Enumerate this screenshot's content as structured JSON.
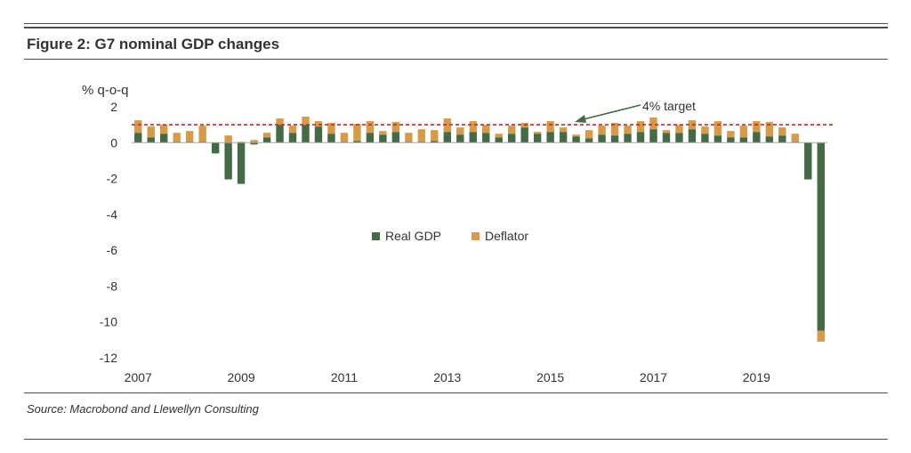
{
  "figure": {
    "title": "Figure 2: G7 nominal GDP changes",
    "source": "Source: Macrobond and Llewellyn Consulting"
  },
  "chart_data": {
    "type": "bar",
    "stacked": true,
    "ylabel": "% q-o-q",
    "ylim": [
      -12,
      2
    ],
    "yticks": [
      2,
      0,
      -2,
      -4,
      -6,
      -8,
      -10,
      -12
    ],
    "xticks": [
      "2007",
      "2009",
      "2011",
      "2013",
      "2015",
      "2017",
      "2019"
    ],
    "x_start_year": 2007,
    "quarters_per_year": 4,
    "legend": {
      "placement": "center"
    },
    "reference_line": {
      "value": 1.0,
      "label": "4% target",
      "color": "#b5302f",
      "style": "dashed"
    },
    "series": [
      {
        "name": "Real GDP",
        "color": "#436b45",
        "values": [
          0.55,
          0.3,
          0.5,
          0.05,
          0.05,
          0.05,
          -0.6,
          -2.05,
          -2.3,
          -0.1,
          0.3,
          1.0,
          0.55,
          1.0,
          0.9,
          0.5,
          0.05,
          0.1,
          0.55,
          0.45,
          0.6,
          0.05,
          0.05,
          0.1,
          0.6,
          0.45,
          0.6,
          0.55,
          0.3,
          0.5,
          0.85,
          0.5,
          0.6,
          0.6,
          0.35,
          0.25,
          0.45,
          0.4,
          0.5,
          0.6,
          0.75,
          0.55,
          0.55,
          0.75,
          0.5,
          0.4,
          0.3,
          0.3,
          0.6,
          0.35,
          0.4,
          0.05,
          -2.05,
          -10.5
        ]
      },
      {
        "name": "Deflator",
        "color": "#d89a46",
        "values": [
          0.7,
          0.6,
          0.5,
          0.5,
          0.6,
          0.9,
          0.0,
          0.4,
          0.05,
          0.15,
          0.25,
          0.35,
          0.4,
          0.45,
          0.3,
          0.6,
          0.5,
          0.95,
          0.65,
          0.2,
          0.55,
          0.5,
          0.7,
          0.6,
          0.75,
          0.4,
          0.6,
          0.45,
          0.2,
          0.45,
          0.25,
          0.1,
          0.6,
          0.25,
          0.1,
          0.45,
          0.5,
          0.7,
          0.45,
          0.6,
          0.65,
          0.15,
          0.45,
          0.5,
          0.4,
          0.8,
          0.35,
          0.65,
          0.6,
          0.8,
          0.45,
          0.45,
          0.0,
          -0.6
        ]
      }
    ]
  }
}
